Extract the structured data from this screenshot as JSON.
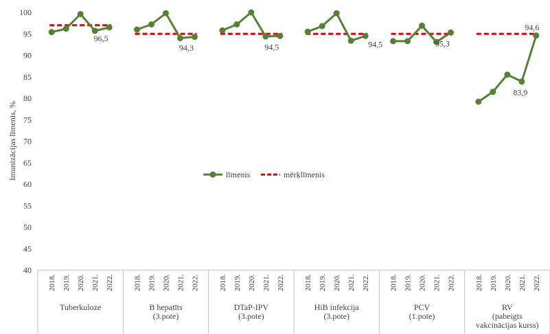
{
  "chart_data": {
    "type": "line",
    "ylabel": "Imunizācijas līmenis, %",
    "ylim": [
      40,
      100
    ],
    "yticks": [
      40,
      45,
      50,
      55,
      60,
      65,
      70,
      75,
      80,
      85,
      90,
      95,
      100
    ],
    "grid": false,
    "legend_position": "center",
    "legend": [
      {
        "name": "līmenis",
        "color": "#548235",
        "style": "solid-marker"
      },
      {
        "name": "mērķlīmenis",
        "color": "#e00000",
        "style": "dashed"
      }
    ],
    "years": [
      "2018.",
      "2019.",
      "2020.",
      "2021.",
      "2022."
    ],
    "groups": [
      {
        "label_lines": [
          "Tuberkuloze"
        ],
        "values": [
          95.4,
          96.2,
          99.6,
          95.7,
          96.5
        ],
        "target": 97,
        "label": "96,5",
        "label_pos": "below"
      },
      {
        "label_lines": [
          "B hepatīts",
          "(3.pote)"
        ],
        "values": [
          96.0,
          97.2,
          99.8,
          94.0,
          94.3
        ],
        "target": 95,
        "label": "94,3",
        "label_pos": "below"
      },
      {
        "label_lines": [
          "DTaP-IPV",
          "(3.pote)"
        ],
        "values": [
          95.8,
          97.2,
          100.0,
          94.4,
          94.5
        ],
        "target": 95,
        "label": "94,5",
        "label_pos": "below"
      },
      {
        "label_lines": [
          "HiB infekcija",
          "(3.pote)"
        ],
        "values": [
          95.5,
          96.8,
          99.8,
          93.4,
          94.5
        ],
        "target": 95,
        "label": "94,5",
        "label_pos": "right"
      },
      {
        "label_lines": [
          "PCV",
          "(1.pote)"
        ],
        "values": [
          93.3,
          93.3,
          96.9,
          93.1,
          95.3
        ],
        "target": 95,
        "label": "95,3",
        "label_pos": "below"
      },
      {
        "label_lines": [
          "RV",
          "(pabeigts",
          "vakcinācijas kurss)"
        ],
        "values": [
          79.2,
          81.5,
          85.5,
          83.9,
          94.6
        ],
        "target": 95,
        "label": "94,6",
        "label_pos": "above",
        "extra_label": "83,9"
      }
    ]
  }
}
